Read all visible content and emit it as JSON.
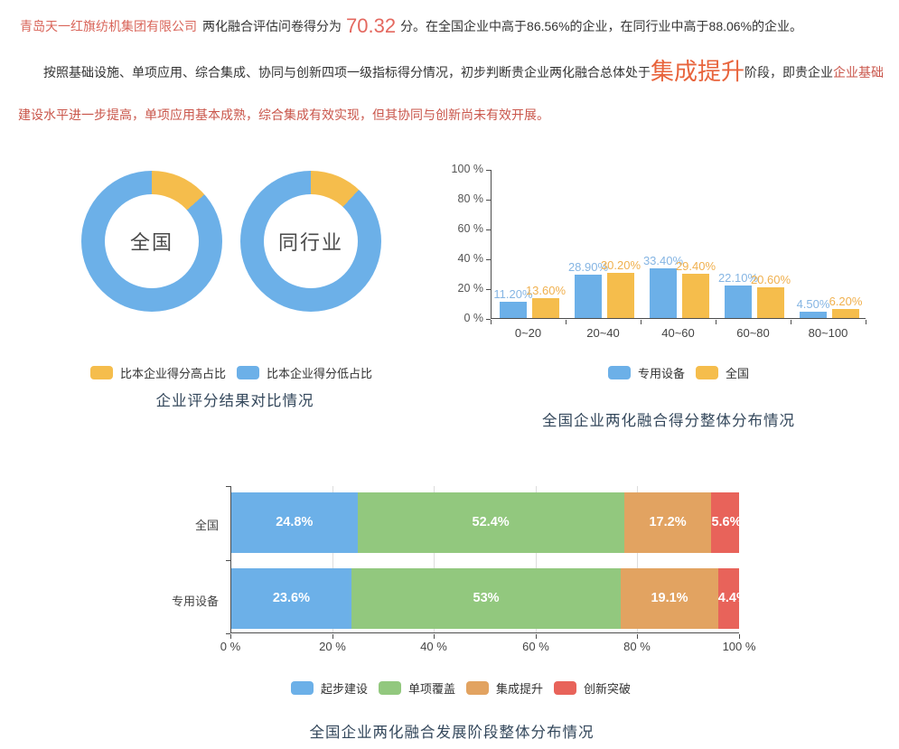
{
  "colors": {
    "blue": "#6CB0E8",
    "yellow": "#F5BD4C",
    "green": "#92C87E",
    "orange": "#E2A361",
    "red": "#E8635A",
    "blue_label": "#85B5E3",
    "yellow_label": "#F0B04E",
    "title": "#33475B",
    "company_red": "#D9655A",
    "score_orange": "#E4685F",
    "stage_orange": "#E8643C",
    "body_red": "#C9554A",
    "body_dark": "#333333"
  },
  "report": {
    "para1": {
      "company": "青岛天一红旗纺机集团有限公司",
      "mid": "两化融合评估问卷得分为",
      "score": "70.32",
      "tail": "分。在全国企业中高于86.56%的企业，在同行业中高于88.06%的企业。"
    },
    "para2": {
      "lead": "按照基础设施、单项应用、综合集成、协同与创新四项一级指标得分情况，初步判断贵企业两化融合总体处于",
      "stage": "集成提升",
      "mid": "阶段，即贵企业",
      "tail": "企业基础建设水平进一步提高，单项应用基本成熟，综合集成有效实现，但其协同与创新尚未有效开展。"
    }
  },
  "chart_data": [
    {
      "type": "pie",
      "subtype": "donut",
      "title": "企业评分结果对比情况",
      "legend_position": "bottom",
      "legend": [
        "比本企业得分高占比",
        "比本企业得分低占比"
      ],
      "legend_color_keys": [
        "yellow",
        "blue"
      ],
      "donuts": [
        {
          "label": "全国",
          "slices": [
            {
              "name": "比本企业得分高占比",
              "value": 13.44
            },
            {
              "name": "比本企业得分低占比",
              "value": 86.56
            }
          ]
        },
        {
          "label": "同行业",
          "slices": [
            {
              "name": "比本企业得分高占比",
              "value": 11.94
            },
            {
              "name": "比本企业得分低占比",
              "value": 88.06
            }
          ]
        }
      ]
    },
    {
      "type": "bar",
      "title": "全国企业两化融合得分整体分布情况",
      "categories": [
        "0~20",
        "20~40",
        "40~60",
        "60~80",
        "80~100"
      ],
      "series": [
        {
          "name": "专用设备",
          "color_key": "blue",
          "values": [
            11.2,
            28.9,
            33.4,
            22.1,
            4.5
          ],
          "labels": [
            "11.20%",
            "28.90%",
            "33.40%",
            "22.10%",
            "4.50%"
          ]
        },
        {
          "name": "全国",
          "color_key": "yellow",
          "values": [
            13.6,
            30.2,
            29.4,
            20.6,
            6.2
          ],
          "labels": [
            "13.60%",
            "30.20%",
            "29.40%",
            "20.60%",
            "6.20%"
          ]
        }
      ],
      "ylim": [
        0,
        100
      ],
      "yticks": [
        "0 %",
        "20 %",
        "40 %",
        "60 %",
        "80 %",
        "100 %"
      ],
      "grid": false,
      "legend_position": "bottom"
    },
    {
      "type": "bar",
      "orientation": "horizontal",
      "stacked": true,
      "title": "全国企业两化融合发展阶段整体分布情况",
      "categories": [
        "全国",
        "专用设备"
      ],
      "series": [
        {
          "name": "起步建设",
          "color_key": "blue",
          "values": [
            24.8,
            23.6
          ],
          "labels": [
            "24.8%",
            "23.6%"
          ]
        },
        {
          "name": "单项覆盖",
          "color_key": "green",
          "values": [
            52.4,
            53
          ],
          "labels": [
            "52.4%",
            "53%"
          ]
        },
        {
          "name": "集成提升",
          "color_key": "orange",
          "values": [
            17.2,
            19.1
          ],
          "labels": [
            "17.2%",
            "19.1%"
          ]
        },
        {
          "name": "创新突破",
          "color_key": "red",
          "values": [
            5.6,
            4.4
          ],
          "labels": [
            "5.6%",
            "4.4%"
          ]
        }
      ],
      "xlim": [
        0,
        100
      ],
      "xticks": [
        "0 %",
        "20 %",
        "40 %",
        "60 %",
        "80 %",
        "100 %"
      ],
      "grid": true,
      "legend_position": "bottom"
    }
  ]
}
